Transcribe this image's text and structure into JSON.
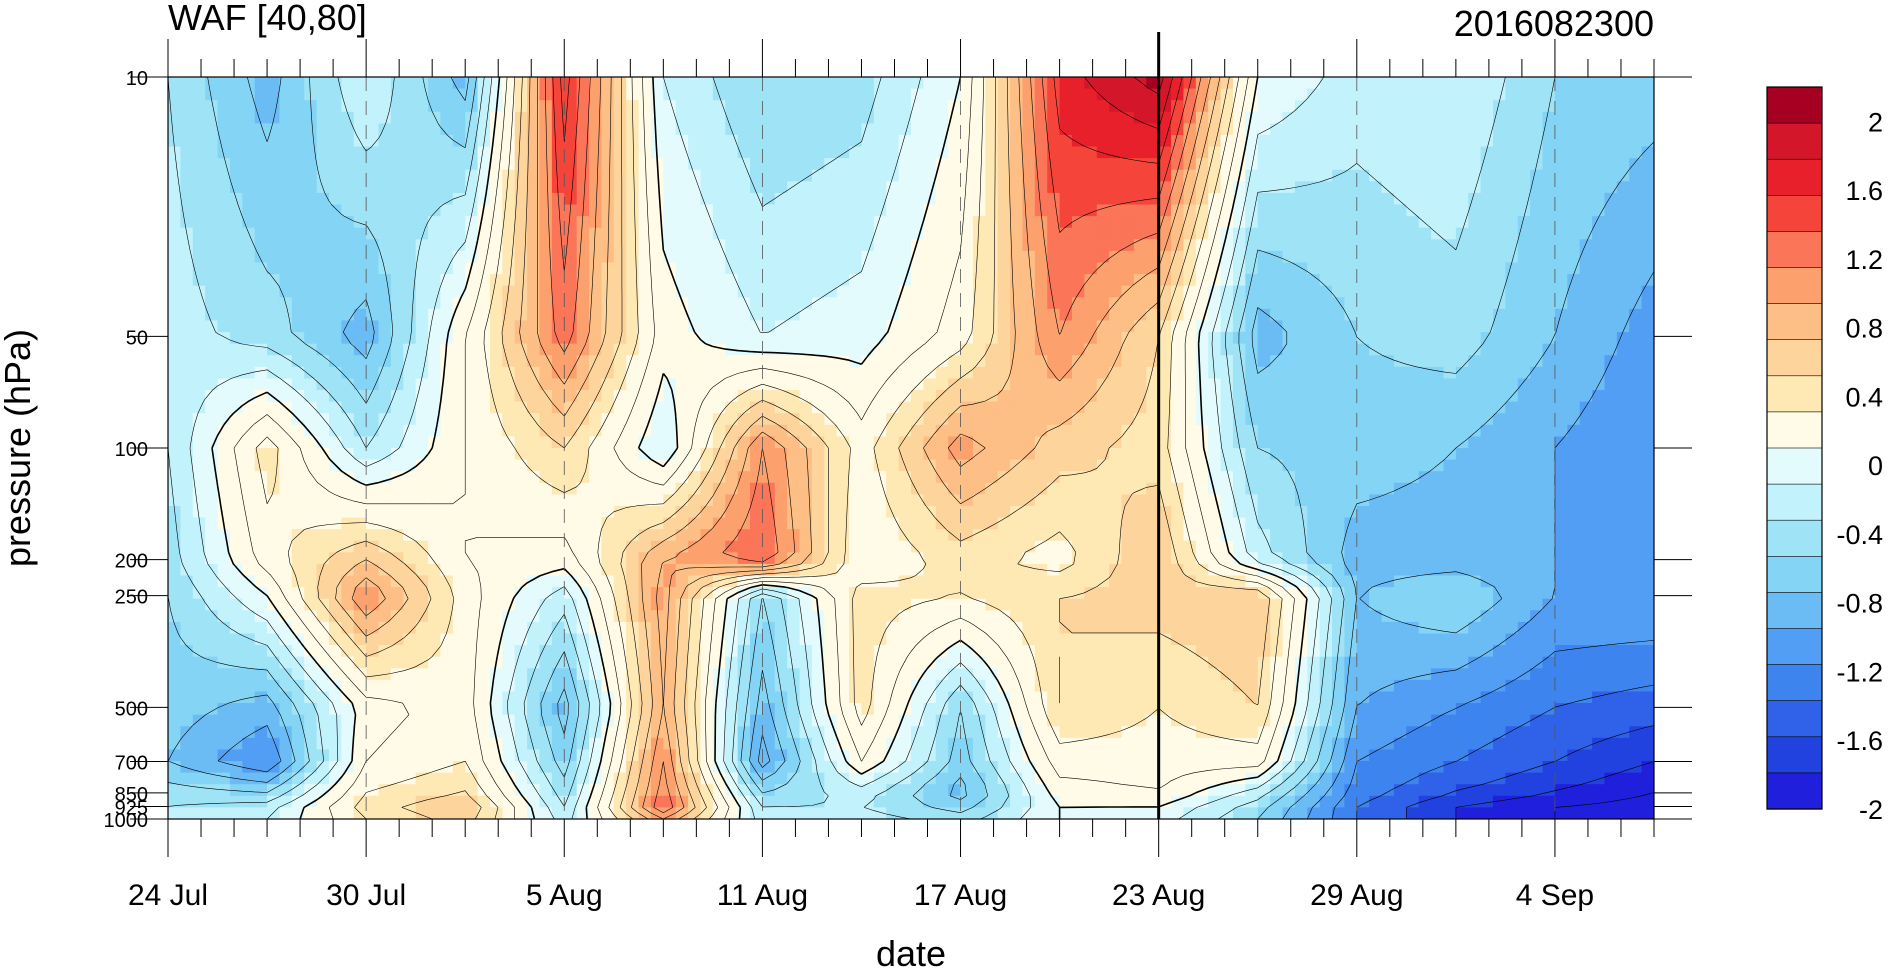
{
  "chart_data": {
    "type": "heatmap",
    "title": "WAF [40,80]",
    "subtitle": "2016082300",
    "xlabel": "date",
    "ylabel": "pressure (hPa)",
    "x_ticks": [
      "24 Jul",
      "30 Jul",
      "5 Aug",
      "11 Aug",
      "17 Aug",
      "23 Aug",
      "29 Aug",
      "4 Sep"
    ],
    "x_tick_days": [
      0,
      6,
      12,
      18,
      24,
      30,
      36,
      42
    ],
    "x_range_days": [
      0,
      45
    ],
    "marker_day": 30,
    "y_ticks": [
      "10",
      "50",
      "100",
      "200",
      "250",
      "500",
      "700",
      "850",
      "925",
      "1000"
    ],
    "y_tick_values": [
      10,
      50,
      100,
      200,
      250,
      500,
      700,
      850,
      925,
      1000
    ],
    "y_levels": [
      10,
      50,
      100,
      200,
      250,
      500,
      700,
      850,
      925,
      1000
    ],
    "grid": "dashed vertical gridlines at date ticks",
    "colorbar": {
      "placement": "right",
      "labels": [
        "2",
        "1.6",
        "1.2",
        "0.8",
        "0.4",
        "0",
        "-0.4",
        "-0.8",
        "-1.2",
        "-1.6",
        "-2"
      ],
      "label_values": [
        2,
        1.6,
        1.2,
        0.8,
        0.4,
        0,
        -0.4,
        -0.8,
        -1.2,
        -1.6,
        -2
      ],
      "bins": [
        {
          "min": 2.0,
          "max": 2.2,
          "color": "#a50021"
        },
        {
          "min": 1.8,
          "max": 2.0,
          "color": "#d4162a"
        },
        {
          "min": 1.6,
          "max": 1.8,
          "color": "#e8202b"
        },
        {
          "min": 1.4,
          "max": 1.6,
          "color": "#f5453a"
        },
        {
          "min": 1.2,
          "max": 1.4,
          "color": "#fb7558"
        },
        {
          "min": 1.0,
          "max": 1.2,
          "color": "#fca06e"
        },
        {
          "min": 0.8,
          "max": 1.0,
          "color": "#fdbf86"
        },
        {
          "min": 0.6,
          "max": 0.8,
          "color": "#fdd49c"
        },
        {
          "min": 0.4,
          "max": 0.6,
          "color": "#fee8b4"
        },
        {
          "min": 0.0,
          "max": 0.4,
          "color": "#fffbe6"
        },
        {
          "min": -0.2,
          "max": 0.0,
          "color": "#e3fbfd"
        },
        {
          "min": -0.4,
          "max": -0.2,
          "color": "#c2f2fb"
        },
        {
          "min": -0.6,
          "max": -0.4,
          "color": "#9fe3f6"
        },
        {
          "min": -0.8,
          "max": -0.6,
          "color": "#84d4f5"
        },
        {
          "min": -1.0,
          "max": -0.8,
          "color": "#6bbcf5"
        },
        {
          "min": -1.2,
          "max": -1.0,
          "color": "#529ef4"
        },
        {
          "min": -1.4,
          "max": -1.2,
          "color": "#3d84ef"
        },
        {
          "min": -1.6,
          "max": -1.4,
          "color": "#2f62e8"
        },
        {
          "min": -1.8,
          "max": -1.6,
          "color": "#2242e0"
        },
        {
          "min": -2.0,
          "max": -1.8,
          "color": "#1f1fdc"
        }
      ]
    },
    "x_days": [
      0,
      3,
      6,
      9,
      12,
      15,
      18,
      21,
      24,
      27,
      30,
      33,
      36,
      39,
      42,
      45
    ],
    "z": [
      [
        -0.4,
        -0.9,
        -0.2,
        -0.9,
        1.7,
        -0.2,
        -0.6,
        -0.5,
        0.0,
        1.7,
        2.1,
        0.0,
        -0.3,
        -0.2,
        -0.6,
        -0.7
      ],
      [
        -0.3,
        -0.5,
        -0.9,
        0.2,
        1.3,
        0.1,
        -0.2,
        -0.1,
        0.3,
        1.2,
        0.6,
        -0.9,
        -0.6,
        -0.5,
        -0.8,
        -1.1
      ],
      [
        -0.4,
        0.5,
        -0.4,
        0.2,
        0.6,
        -0.2,
        1.2,
        0.3,
        1.1,
        0.7,
        0.5,
        -0.6,
        -0.7,
        -0.8,
        -1.0,
        -1.2
      ],
      [
        -0.5,
        0.3,
        0.8,
        0.2,
        0.1,
        1.0,
        1.4,
        0.2,
        0.5,
        0.3,
        0.8,
        -0.3,
        -0.9,
        -0.9,
        -1.0,
        -1.1
      ],
      [
        -0.6,
        0.0,
        1.2,
        0.3,
        -0.3,
        1.1,
        -0.6,
        0.5,
        0.4,
        0.6,
        0.7,
        0.8,
        -0.8,
        -0.6,
        -1.0,
        -1.0
      ],
      [
        -0.7,
        -0.9,
        0.1,
        0.3,
        -0.9,
        1.0,
        -0.9,
        0.5,
        -0.6,
        0.6,
        0.4,
        0.6,
        -1.0,
        -1.2,
        -1.4,
        -1.5
      ],
      [
        -0.8,
        -1.2,
        0.2,
        0.4,
        -0.7,
        1.2,
        -1.1,
        0.2,
        -0.7,
        0.3,
        0.3,
        0.3,
        -1.2,
        -1.4,
        -1.6,
        -1.8
      ],
      [
        -0.5,
        -0.6,
        0.4,
        0.6,
        -0.5,
        1.3,
        -0.6,
        -0.3,
        -0.9,
        0.1,
        0.2,
        -0.3,
        -1.3,
        -1.6,
        -1.8,
        -2.0
      ],
      [
        -0.4,
        -0.3,
        0.5,
        0.8,
        -0.4,
        1.4,
        -0.4,
        -0.4,
        -0.7,
        0.0,
        0.0,
        -0.5,
        -1.4,
        -1.8,
        -2.0,
        -2.1
      ],
      [
        -0.3,
        -0.2,
        0.4,
        0.7,
        -0.3,
        1.0,
        -0.3,
        -0.3,
        -0.5,
        0.0,
        -0.1,
        -0.6,
        -1.4,
        -1.8,
        -2.0,
        -2.1
      ]
    ]
  }
}
